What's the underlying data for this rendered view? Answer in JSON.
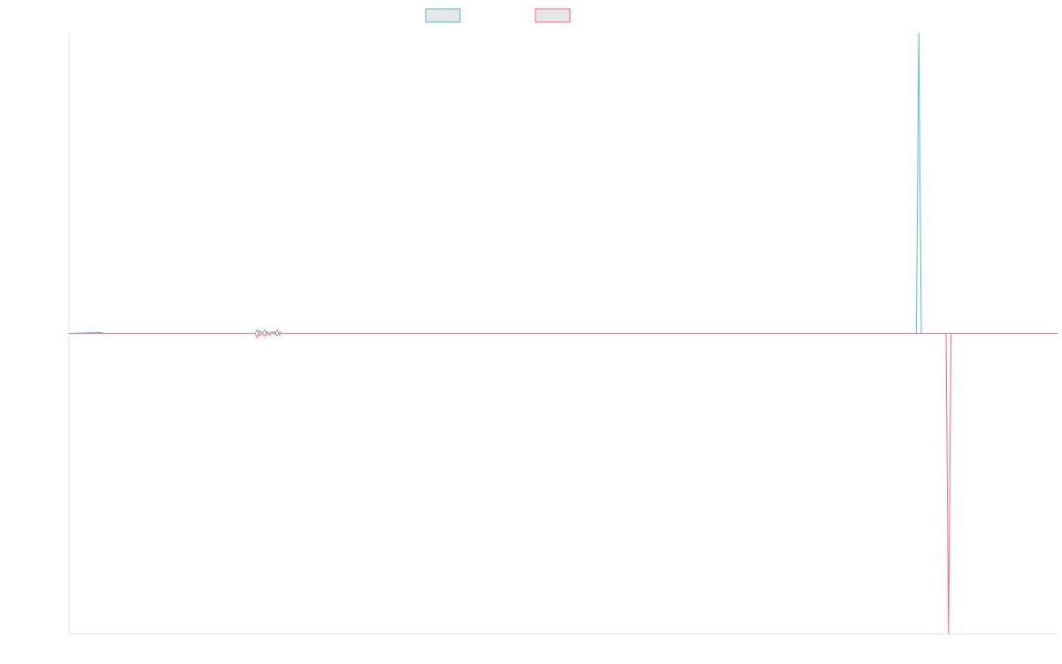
{
  "chart_data": {
    "type": "line",
    "title": "",
    "xlabel": "",
    "ylabel": "",
    "x_count": 400,
    "ylim": [
      -1,
      1
    ],
    "grid": false,
    "legend_placement": "top-center",
    "series": [
      {
        "color": "#4bc0c0",
        "fill": "#e6e6e6",
        "points": [
          {
            "x": 0,
            "y": 0
          },
          {
            "x": 13,
            "y": 0.003
          },
          {
            "x": 14,
            "y": 0
          },
          {
            "x": 75,
            "y": 0
          },
          {
            "x": 76,
            "y": 0.012
          },
          {
            "x": 77,
            "y": -0.008
          },
          {
            "x": 78,
            "y": 0
          },
          {
            "x": 79,
            "y": 0.012
          },
          {
            "x": 80,
            "y": -0.006
          },
          {
            "x": 81,
            "y": 0
          },
          {
            "x": 82,
            "y": 0.006
          },
          {
            "x": 83,
            "y": -0.004
          },
          {
            "x": 84,
            "y": 0.012
          },
          {
            "x": 85,
            "y": -0.006
          },
          {
            "x": 86,
            "y": 0
          },
          {
            "x": 342,
            "y": 0
          },
          {
            "x": 343,
            "y": 1
          },
          {
            "x": 344,
            "y": 0
          },
          {
            "x": 399,
            "y": 0
          }
        ]
      },
      {
        "color": "#ff6384",
        "fill": "#e6e6e6",
        "points": [
          {
            "x": 0,
            "y": 0
          },
          {
            "x": 75,
            "y": 0
          },
          {
            "x": 76,
            "y": -0.015
          },
          {
            "x": 77,
            "y": 0.008
          },
          {
            "x": 78,
            "y": 0
          },
          {
            "x": 79,
            "y": -0.01
          },
          {
            "x": 80,
            "y": 0.006
          },
          {
            "x": 81,
            "y": -0.006
          },
          {
            "x": 82,
            "y": 0
          },
          {
            "x": 83,
            "y": 0.006
          },
          {
            "x": 84,
            "y": -0.008
          },
          {
            "x": 85,
            "y": 0.004
          },
          {
            "x": 86,
            "y": 0
          },
          {
            "x": 354,
            "y": 0
          },
          {
            "x": 355,
            "y": -1
          },
          {
            "x": 356,
            "y": 0
          },
          {
            "x": 399,
            "y": 0
          }
        ]
      }
    ]
  }
}
